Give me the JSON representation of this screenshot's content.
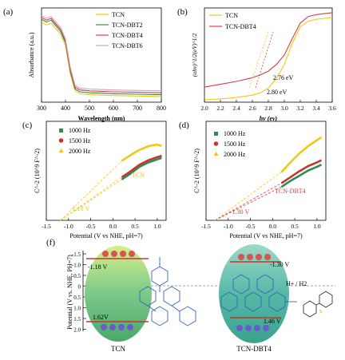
{
  "panels": {
    "a": {
      "letter": "(a)",
      "ylabel": "Absorbance (a.u.)",
      "xlabel": "Wavelength (nm)",
      "legend": [
        "TCN",
        "TCN-DBT2",
        "TCN-DBT4",
        "TCN-DBT6"
      ],
      "xticks": [
        "300",
        "400",
        "500",
        "600",
        "700",
        "800"
      ]
    },
    "b": {
      "letter": "(b)",
      "ylabel": "(αhν)^1/2(eV)^1/2",
      "xlabel": "hν (ev)",
      "legend": [
        "TCN",
        "TCN-DBT4"
      ],
      "xticks": [
        "2.0",
        "2.2",
        "2.4",
        "2.6",
        "2.8",
        "3.0",
        "3.2",
        "3.4",
        "3.6"
      ],
      "ann1": "2.76 eV",
      "ann2": "2.80 eV"
    },
    "c": {
      "letter": "(c)",
      "ylabel": "C^-2 (10^9 F^-2)",
      "xlabel": "Potential (V vs NHE, pH=7)",
      "legend": [
        "1000 Hz",
        "1500 Hz",
        "2000 Hz"
      ],
      "xticks": [
        "-1.5",
        "-1.0",
        "-0.5",
        "0.0",
        "0.5",
        "1.0"
      ],
      "sample": "TCN",
      "fb": "-1.18 V"
    },
    "d": {
      "letter": "(d)",
      "ylabel": "C^-2 (10^9 F^-2)",
      "xlabel": "Potential (V vs NHE, pH=7)",
      "legend": [
        "1000 Hz",
        "1500 Hz",
        "2000 Hz"
      ],
      "xticks": [
        "-1.5",
        "-1.0",
        "-0.5",
        "0.0",
        "0.5",
        "1.0"
      ],
      "sample": "TCN-DBT4",
      "fb": "-1.30 V"
    },
    "f": {
      "letter": "(f)",
      "ylabel": "Potential (V vs. NHE, PH=7)",
      "yticks": [
        "-1.5",
        "-1.0",
        "-0.5",
        "0",
        "0.5",
        "1.0",
        "1.5",
        "2.0"
      ],
      "tcn_cb": "-1.18 V",
      "tcn_vb": "1.62V",
      "dbt_cb": "-1.30 V",
      "dbt_vb": "1.46 V",
      "redox": "H+ / H2",
      "label_tcn": "TCN",
      "label_dbt": "TCN-DBT4"
    }
  },
  "chart_data": [
    {
      "type": "line",
      "panel": "a",
      "xlabel": "Wavelength (nm)",
      "ylabel": "Absorbance (a.u.)",
      "xlim": [
        300,
        800
      ],
      "x": [
        300,
        320,
        340,
        360,
        380,
        400,
        420,
        440,
        460,
        500,
        600,
        700,
        800
      ],
      "series": [
        {
          "name": "TCN",
          "color": "#f5c518",
          "values": [
            0.85,
            0.82,
            0.84,
            0.78,
            0.72,
            0.6,
            0.3,
            0.12,
            0.09,
            0.08,
            0.07,
            0.065,
            0.06
          ]
        },
        {
          "name": "TCN-DBT2",
          "color": "#2e8b57",
          "values": [
            0.88,
            0.85,
            0.87,
            0.81,
            0.75,
            0.63,
            0.33,
            0.14,
            0.11,
            0.1,
            0.09,
            0.085,
            0.08
          ]
        },
        {
          "name": "TCN-DBT4",
          "color": "#d94040",
          "values": [
            0.9,
            0.87,
            0.89,
            0.83,
            0.77,
            0.65,
            0.35,
            0.16,
            0.13,
            0.12,
            0.11,
            0.105,
            0.1
          ]
        },
        {
          "name": "TCN-DBT6",
          "color": "#d8a0c8",
          "values": [
            0.92,
            0.89,
            0.91,
            0.85,
            0.79,
            0.67,
            0.37,
            0.18,
            0.15,
            0.14,
            0.13,
            0.125,
            0.12
          ]
        }
      ]
    },
    {
      "type": "line",
      "panel": "b",
      "xlabel": "hν (ev)",
      "ylabel": "(αhν)^1/2(eV)^1/2",
      "xlim": [
        2.0,
        3.6
      ],
      "x": [
        2.0,
        2.2,
        2.4,
        2.6,
        2.7,
        2.8,
        2.9,
        3.0,
        3.1,
        3.2,
        3.3,
        3.4,
        3.5,
        3.6
      ],
      "series": [
        {
          "name": "TCN",
          "color": "#f5c518",
          "values": [
            0.05,
            0.07,
            0.1,
            0.15,
            0.2,
            0.3,
            0.5,
            0.8,
            1.25,
            1.6,
            1.72,
            1.76,
            1.78,
            1.8
          ]
        },
        {
          "name": "TCN-DBT4",
          "color": "#d94040",
          "values": [
            0.32,
            0.38,
            0.44,
            0.52,
            0.58,
            0.66,
            0.8,
            1.0,
            1.35,
            1.68,
            1.82,
            1.86,
            1.88,
            1.9
          ]
        }
      ],
      "annotations": [
        "2.76 eV",
        "2.80 eV"
      ]
    },
    {
      "type": "scatter",
      "panel": "c",
      "xlabel": "Potential (V vs NHE, pH=7)",
      "ylabel": "C^-2 (10^9 F^-2)",
      "xlim": [
        -1.5,
        1.2
      ],
      "x": [
        0.2,
        0.4,
        0.6,
        0.8,
        1.0,
        1.1
      ],
      "series": [
        {
          "name": "1000 Hz",
          "color": "#2e8b57",
          "values": [
            0.55,
            0.63,
            0.72,
            0.78,
            0.82,
            0.84
          ]
        },
        {
          "name": "1500 Hz",
          "color": "#c0392b",
          "values": [
            0.58,
            0.66,
            0.75,
            0.81,
            0.85,
            0.87
          ]
        },
        {
          "name": "2000 Hz",
          "color": "#f5c518",
          "values": [
            0.8,
            0.88,
            0.95,
            1.0,
            1.02,
            1.0
          ]
        }
      ],
      "flat_band": "-1.18 V"
    },
    {
      "type": "scatter",
      "panel": "d",
      "xlabel": "Potential (V vs NHE, pH=7)",
      "ylabel": "C^-2 (10^9 F^-2)",
      "xlim": [
        -1.5,
        1.2
      ],
      "x": [
        0.2,
        0.4,
        0.6,
        0.8,
        1.0,
        1.1
      ],
      "series": [
        {
          "name": "1000 Hz",
          "color": "#2e8b57",
          "values": [
            0.45,
            0.53,
            0.6,
            0.67,
            0.72,
            0.75
          ]
        },
        {
          "name": "1500 Hz",
          "color": "#c0392b",
          "values": [
            0.5,
            0.58,
            0.66,
            0.73,
            0.78,
            0.81
          ]
        },
        {
          "name": "2000 Hz",
          "color": "#f5c518",
          "values": [
            0.65,
            0.78,
            0.9,
            1.0,
            1.08,
            1.12
          ]
        }
      ],
      "flat_band": "-1.30 V"
    }
  ]
}
